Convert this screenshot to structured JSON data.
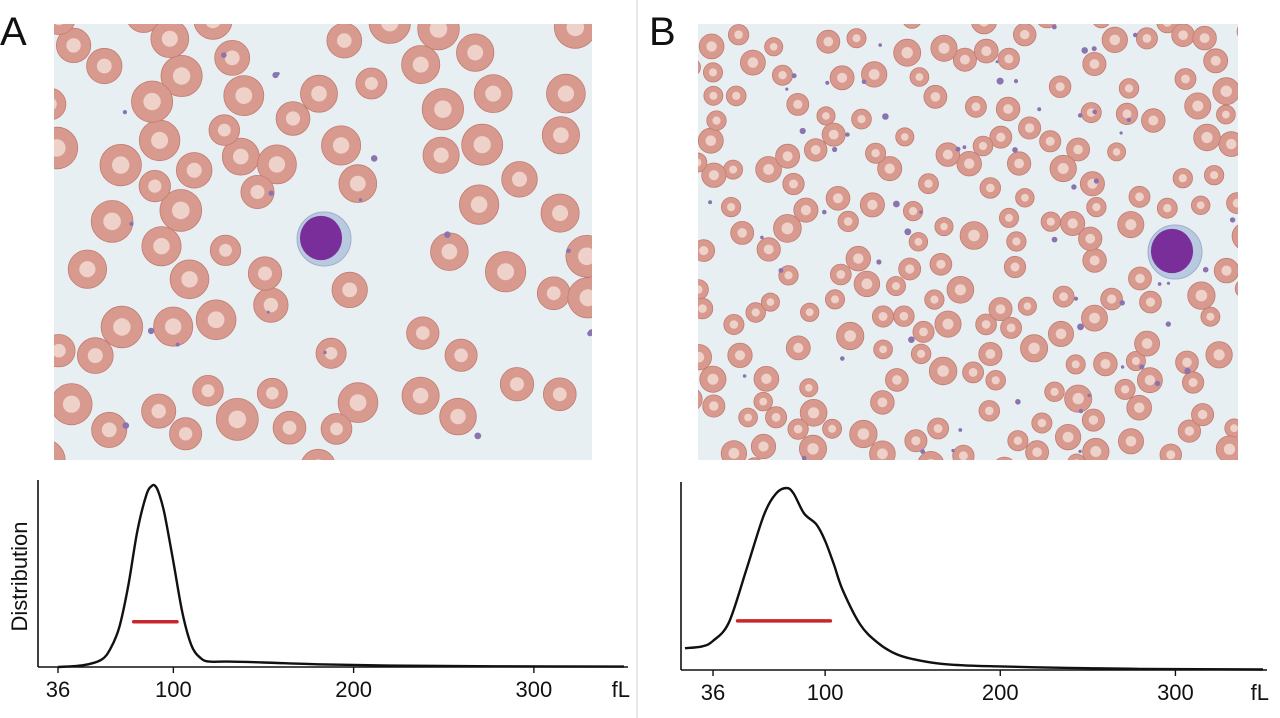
{
  "panels": [
    {
      "label": "A"
    },
    {
      "label": "B"
    }
  ],
  "colors": {
    "rbc_fill": "#d89a8e",
    "rbc_center": "#f1d7cf",
    "rbc_edge": "#c27b70",
    "platelet": "#8a74b0",
    "leukocyte_nucleus": "#7a2e9a",
    "smear_background": "#e8eff3",
    "curve": "#111111",
    "fwhm_line": "#c8262c"
  },
  "chart_data": [
    {
      "type": "line",
      "panel": "A",
      "ylabel": "Distribution",
      "xlabel": "fL",
      "xlim": [
        36,
        350
      ],
      "ylim": [
        0,
        1
      ],
      "xticks": [
        36,
        100,
        200,
        300
      ],
      "xtick_labels": [
        "36",
        "100",
        "200",
        "300"
      ],
      "x_unit_label": "fL",
      "series": [
        {
          "x": [
            36,
            50,
            60,
            65,
            70,
            75,
            80,
            85,
            88,
            90,
            92,
            95,
            100,
            105,
            110,
            115,
            120,
            130,
            150,
            180,
            220,
            280,
            350
          ],
          "y": [
            0.0,
            0.01,
            0.04,
            0.1,
            0.22,
            0.45,
            0.75,
            0.95,
            1.0,
            1.0,
            0.96,
            0.85,
            0.58,
            0.3,
            0.12,
            0.05,
            0.03,
            0.03,
            0.025,
            0.015,
            0.008,
            0.004,
            0.002
          ]
        }
      ],
      "fwhm_bar": {
        "x_start": 78,
        "x_end": 102,
        "y": 0.25
      }
    },
    {
      "type": "line",
      "panel": "B",
      "xlabel": "fL",
      "xlim": [
        20,
        350
      ],
      "ylim": [
        0,
        1
      ],
      "xticks": [
        36,
        100,
        200,
        300
      ],
      "xtick_labels": [
        "36",
        "100",
        "200",
        "300"
      ],
      "x_unit_label": "fL",
      "series": [
        {
          "x": [
            20,
            30,
            36,
            45,
            55,
            65,
            72,
            78,
            82,
            88,
            95,
            100,
            105,
            110,
            120,
            130,
            140,
            150,
            165,
            180,
            200,
            220,
            250,
            280,
            350
          ],
          "y": [
            0.12,
            0.13,
            0.16,
            0.26,
            0.55,
            0.85,
            0.97,
            1.0,
            0.97,
            0.86,
            0.8,
            0.71,
            0.58,
            0.44,
            0.25,
            0.15,
            0.09,
            0.06,
            0.035,
            0.025,
            0.02,
            0.015,
            0.01,
            0.006,
            0.003
          ]
        }
      ],
      "fwhm_bar": {
        "x_start": 50,
        "x_end": 103,
        "y": 0.27
      }
    }
  ]
}
